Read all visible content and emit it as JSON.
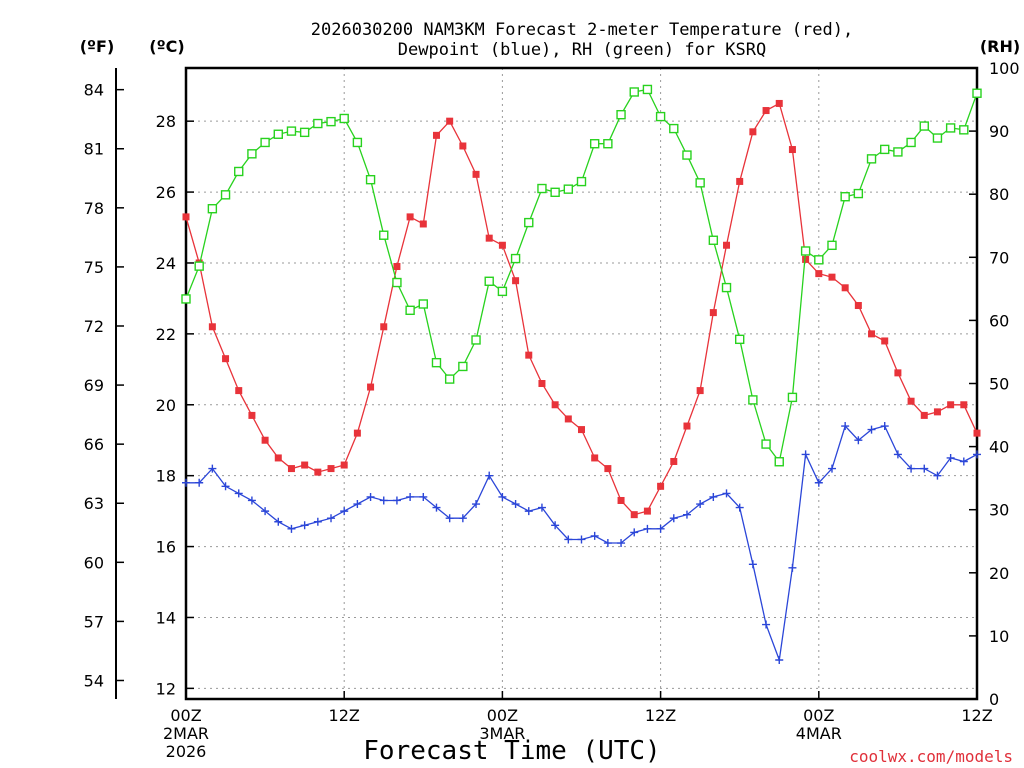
{
  "chart_data": {
    "type": "line",
    "title_line1": "2026030200 NAM3KM Forecast 2-meter Temperature (red),",
    "title_line2": "Dewpoint (blue), RH (green) for KSRQ",
    "unit_f": "(ºF)",
    "unit_c": "(ºC)",
    "unit_rh": "(RH)",
    "xlabel": "Forecast Time (UTC)",
    "credit": "coolwx.com/models",
    "x_range_hours": [
      0,
      60
    ],
    "c_range": [
      11.7,
      29.5
    ],
    "rh_range": [
      0,
      100
    ],
    "x_ticks": [
      {
        "hour": 0,
        "label": "00Z",
        "sub1": "2MAR",
        "sub2": "2026"
      },
      {
        "hour": 12,
        "label": "12Z",
        "sub1": "",
        "sub2": ""
      },
      {
        "hour": 24,
        "label": "00Z",
        "sub1": "3MAR",
        "sub2": ""
      },
      {
        "hour": 36,
        "label": "12Z",
        "sub1": "",
        "sub2": ""
      },
      {
        "hour": 48,
        "label": "00Z",
        "sub1": "4MAR",
        "sub2": ""
      },
      {
        "hour": 60,
        "label": "12Z",
        "sub1": "",
        "sub2": ""
      }
    ],
    "c_ticks": [
      "12",
      "14",
      "16",
      "18",
      "20",
      "22",
      "24",
      "26",
      "28"
    ],
    "f_ticks": [
      "54",
      "57",
      "60",
      "63",
      "66",
      "69",
      "72",
      "75",
      "78",
      "81",
      "84"
    ],
    "rh_ticks": [
      "0",
      "10",
      "20",
      "30",
      "40",
      "50",
      "60",
      "70",
      "80",
      "90",
      "100"
    ],
    "series": [
      {
        "name": "Temperature",
        "color": "#e8333a",
        "marker": "filled-square",
        "values": [
          25.3,
          24.0,
          22.2,
          21.3,
          20.4,
          19.7,
          19.0,
          18.5,
          18.2,
          18.3,
          18.1,
          18.2,
          18.3,
          19.2,
          20.5,
          22.2,
          23.9,
          25.3,
          25.1,
          27.6,
          28.0,
          27.3,
          26.5,
          24.7,
          24.5,
          23.5,
          21.4,
          20.6,
          20.0,
          19.6,
          19.3,
          18.5,
          18.2,
          17.3,
          16.9,
          17.0,
          17.7,
          18.4,
          19.4,
          20.4,
          22.6,
          24.5,
          26.3,
          27.7,
          28.3,
          28.5,
          27.2,
          24.1,
          23.7,
          23.6,
          23.3,
          22.8,
          22.0,
          21.8,
          20.9,
          20.1,
          19.7,
          19.8,
          20.0,
          20.0,
          19.2
        ]
      },
      {
        "name": "Dewpoint",
        "color": "#2b46d8",
        "marker": "plus",
        "values": [
          17.8,
          17.8,
          18.2,
          17.7,
          17.5,
          17.3,
          17.0,
          16.7,
          16.5,
          16.6,
          16.7,
          16.8,
          17.0,
          17.2,
          17.4,
          17.3,
          17.3,
          17.4,
          17.4,
          17.1,
          16.8,
          16.8,
          17.2,
          18.0,
          17.4,
          17.2,
          17.0,
          17.1,
          16.6,
          16.2,
          16.2,
          16.3,
          16.1,
          16.1,
          16.4,
          16.5,
          16.5,
          16.8,
          16.9,
          17.2,
          17.4,
          17.5,
          17.1,
          15.5,
          13.8,
          12.8,
          15.4,
          18.6,
          17.8,
          18.2,
          19.4,
          19.0,
          19.3,
          19.4,
          18.6,
          18.2,
          18.2,
          18.0,
          18.5,
          18.4,
          18.6
        ]
      },
      {
        "name": "RH",
        "color": "#28d21e",
        "marker": "open-square",
        "values": [
          63.4,
          68.6,
          77.7,
          79.9,
          83.6,
          86.4,
          88.2,
          89.5,
          90.0,
          89.8,
          91.2,
          91.5,
          92.0,
          88.2,
          82.3,
          73.5,
          66.0,
          61.6,
          62.6,
          53.3,
          50.7,
          52.7,
          56.9,
          66.2,
          64.6,
          69.8,
          75.5,
          80.9,
          80.3,
          80.8,
          82.0,
          88.0,
          88.0,
          92.6,
          96.2,
          96.6,
          92.3,
          90.4,
          86.2,
          81.8,
          72.7,
          65.2,
          57.0,
          47.4,
          40.4,
          37.6,
          47.8,
          71.0,
          69.6,
          71.9,
          79.6,
          80.1,
          85.6,
          87.1,
          86.7,
          88.2,
          90.8,
          88.9,
          90.5,
          90.2,
          96.0
        ]
      }
    ]
  }
}
